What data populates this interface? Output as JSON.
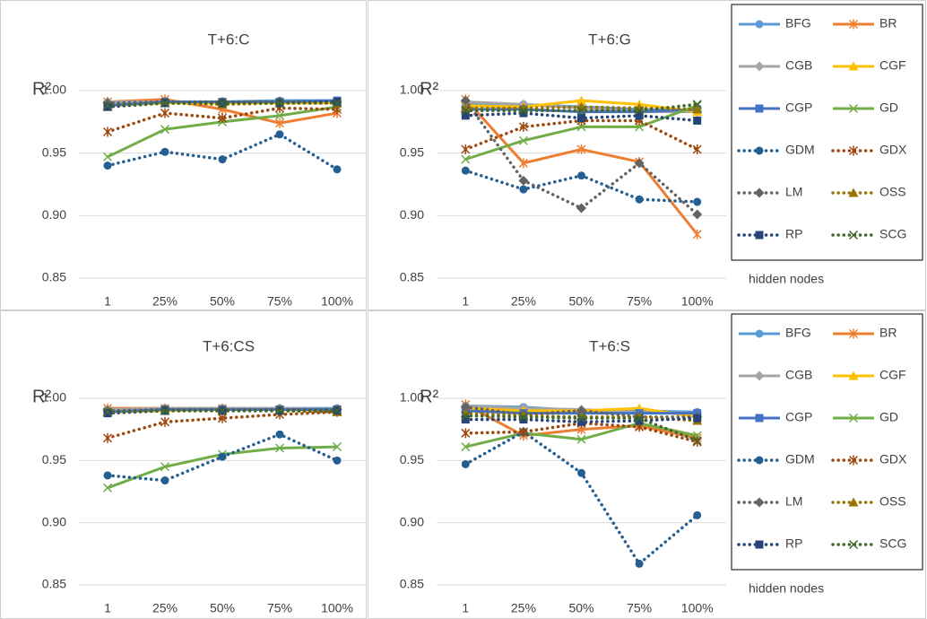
{
  "chart_data": [
    {
      "type": "line",
      "title": "T+6:C",
      "ylabel": "R²",
      "categories": [
        "1",
        "25%",
        "50%",
        "75%",
        "100%"
      ],
      "ylim": [
        0.85,
        1.0
      ],
      "yticks": [
        0.85,
        {
          "value": 0.9,
          "label": "0.90"
        },
        0.95,
        {
          "value": 1,
          "label": "1.00"
        }
      ],
      "grid": true,
      "series": [
        {
          "color": "#5b9bd5",
          "marker": "circle",
          "dash": false,
          "values": [
            0.99,
            0.991,
            0.991,
            0.992,
            0.992
          ]
        },
        {
          "color": "#ed7d31",
          "marker": "asterisk",
          "dash": false,
          "values": [
            0.991,
            0.993,
            0.985,
            0.974,
            0.982
          ]
        },
        {
          "color": "#a5a5a5",
          "marker": "diamond",
          "dash": false,
          "values": [
            0.991,
            0.991,
            0.99,
            0.991,
            0.991
          ]
        },
        {
          "color": "#ffc000",
          "marker": "triangle",
          "dash": false,
          "values": [
            0.988,
            0.99,
            0.99,
            0.99,
            0.99
          ]
        },
        {
          "color": "#4472c4",
          "marker": "square",
          "dash": false,
          "values": [
            0.988,
            0.991,
            0.991,
            0.991,
            0.992
          ]
        },
        {
          "color": "#70ad47",
          "marker": "x",
          "dash": false,
          "values": [
            0.947,
            0.969,
            0.975,
            0.98,
            0.987
          ]
        },
        {
          "color": "#255e91",
          "marker": "circle",
          "dash": true,
          "values": [
            0.94,
            0.951,
            0.945,
            0.965,
            0.937
          ]
        },
        {
          "color": "#9e480e",
          "marker": "asterisk",
          "dash": true,
          "values": [
            0.967,
            0.982,
            0.978,
            0.986,
            0.985
          ]
        },
        {
          "color": "#636363",
          "marker": "diamond",
          "dash": true,
          "values": [
            0.99,
            0.991,
            0.991,
            0.991,
            0.991
          ]
        },
        {
          "color": "#997300",
          "marker": "triangle",
          "dash": true,
          "values": [
            0.987,
            0.99,
            0.989,
            0.99,
            0.99
          ]
        },
        {
          "color": "#264478",
          "marker": "square",
          "dash": true,
          "values": [
            0.987,
            0.99,
            0.99,
            0.99,
            0.991
          ]
        },
        {
          "color": "#43682b",
          "marker": "x",
          "dash": true,
          "values": [
            0.988,
            0.99,
            0.99,
            0.99,
            0.99
          ]
        }
      ]
    },
    {
      "type": "line",
      "title": "T+6:G",
      "ylabel": "R²",
      "xlabel": "hidden nodes",
      "categories": [
        "1",
        "25%",
        "50%",
        "75%",
        "100%"
      ],
      "ylim": [
        0.85,
        1.0
      ],
      "yticks": [
        0.85,
        {
          "value": 0.9,
          "label": "0.90"
        },
        0.95,
        {
          "value": 1,
          "label": "1.00"
        }
      ],
      "grid": true,
      "series": [
        {
          "name": "BFG",
          "color": "#5b9bd5",
          "marker": "circle",
          "dash": false,
          "values": [
            0.99,
            0.989,
            0.987,
            0.985,
            0.984
          ]
        },
        {
          "name": "BR",
          "color": "#ed7d31",
          "marker": "asterisk",
          "dash": false,
          "values": [
            0.993,
            0.942,
            0.953,
            0.943,
            0.885
          ]
        },
        {
          "name": "CGB",
          "color": "#a5a5a5",
          "marker": "diamond",
          "dash": false,
          "values": [
            0.991,
            0.989,
            0.986,
            0.983,
            0.983
          ]
        },
        {
          "name": "CGF",
          "color": "#ffc000",
          "marker": "triangle",
          "dash": false,
          "values": [
            0.988,
            0.987,
            0.992,
            0.989,
            0.983
          ]
        },
        {
          "name": "CGP",
          "color": "#4472c4",
          "marker": "square",
          "dash": false,
          "values": [
            0.985,
            0.985,
            0.983,
            0.983,
            0.985
          ]
        },
        {
          "name": "GD",
          "color": "#70ad47",
          "marker": "x",
          "dash": false,
          "values": [
            0.945,
            0.96,
            0.971,
            0.971,
            0.988
          ]
        },
        {
          "name": "GDM",
          "color": "#255e91",
          "marker": "circle",
          "dash": true,
          "values": [
            0.936,
            0.921,
            0.932,
            0.913,
            0.911
          ]
        },
        {
          "name": "GDX",
          "color": "#9e480e",
          "marker": "asterisk",
          "dash": true,
          "values": [
            0.953,
            0.971,
            0.976,
            0.976,
            0.953
          ]
        },
        {
          "name": "LM",
          "color": "#636363",
          "marker": "diamond",
          "dash": true,
          "values": [
            0.992,
            0.928,
            0.906,
            0.942,
            0.901
          ]
        },
        {
          "name": "OSS",
          "color": "#997300",
          "marker": "triangle",
          "dash": true,
          "values": [
            0.986,
            0.986,
            0.987,
            0.986,
            0.985
          ]
        },
        {
          "name": "RP",
          "color": "#264478",
          "marker": "square",
          "dash": true,
          "values": [
            0.98,
            0.982,
            0.978,
            0.98,
            0.976
          ]
        },
        {
          "name": "SCG",
          "color": "#43682b",
          "marker": "x",
          "dash": true,
          "values": [
            0.984,
            0.984,
            0.984,
            0.984,
            0.989
          ]
        }
      ]
    },
    {
      "type": "line",
      "title": "T+6:CS",
      "ylabel": "R²",
      "categories": [
        "1",
        "25%",
        "50%",
        "75%",
        "100%"
      ],
      "ylim": [
        0.85,
        1.0
      ],
      "yticks": [
        0.85,
        {
          "value": 0.9,
          "label": "0.90"
        },
        0.95,
        {
          "value": 1,
          "label": "1.00"
        }
      ],
      "grid": true,
      "series": [
        {
          "color": "#5b9bd5",
          "marker": "circle",
          "dash": false,
          "values": [
            0.991,
            0.992,
            0.992,
            0.992,
            0.992
          ]
        },
        {
          "color": "#ed7d31",
          "marker": "asterisk",
          "dash": false,
          "values": [
            0.992,
            0.992,
            0.992,
            0.991,
            0.991
          ]
        },
        {
          "color": "#a5a5a5",
          "marker": "diamond",
          "dash": false,
          "values": [
            0.991,
            0.992,
            0.992,
            0.992,
            0.991
          ]
        },
        {
          "color": "#ffc000",
          "marker": "triangle",
          "dash": false,
          "values": [
            0.989,
            0.99,
            0.991,
            0.991,
            0.99
          ]
        },
        {
          "color": "#4472c4",
          "marker": "square",
          "dash": false,
          "values": [
            0.989,
            0.991,
            0.991,
            0.991,
            0.991
          ]
        },
        {
          "color": "#70ad47",
          "marker": "x",
          "dash": false,
          "values": [
            0.928,
            0.945,
            0.955,
            0.96,
            0.961
          ]
        },
        {
          "color": "#255e91",
          "marker": "circle",
          "dash": true,
          "values": [
            0.938,
            0.934,
            0.953,
            0.971,
            0.95
          ]
        },
        {
          "color": "#9e480e",
          "marker": "asterisk",
          "dash": true,
          "values": [
            0.968,
            0.981,
            0.984,
            0.987,
            0.989
          ]
        },
        {
          "color": "#636363",
          "marker": "diamond",
          "dash": true,
          "values": [
            0.99,
            0.991,
            0.991,
            0.991,
            0.991
          ]
        },
        {
          "color": "#997300",
          "marker": "triangle",
          "dash": true,
          "values": [
            0.989,
            0.99,
            0.99,
            0.99,
            0.989
          ]
        },
        {
          "color": "#264478",
          "marker": "square",
          "dash": true,
          "values": [
            0.988,
            0.99,
            0.99,
            0.99,
            0.99
          ]
        },
        {
          "color": "#43682b",
          "marker": "x",
          "dash": true,
          "values": [
            0.989,
            0.99,
            0.99,
            0.99,
            0.99
          ]
        }
      ]
    },
    {
      "type": "line",
      "title": "T+6:S",
      "ylabel": "R²",
      "xlabel": "hidden nodes",
      "categories": [
        "1",
        "25%",
        "50%",
        "75%",
        "100%"
      ],
      "ylim": [
        0.85,
        1.0
      ],
      "yticks": [
        0.85,
        {
          "value": 0.9,
          "label": "0.90"
        },
        0.95,
        {
          "value": 1,
          "label": "1.00"
        }
      ],
      "grid": true,
      "series": [
        {
          "name": "BFG",
          "color": "#5b9bd5",
          "marker": "circle",
          "dash": false,
          "values": [
            0.994,
            0.993,
            0.99,
            0.99,
            0.989
          ]
        },
        {
          "name": "BR",
          "color": "#ed7d31",
          "marker": "asterisk",
          "dash": false,
          "values": [
            0.995,
            0.97,
            0.975,
            0.978,
            0.968
          ]
        },
        {
          "name": "CGB",
          "color": "#a5a5a5",
          "marker": "diamond",
          "dash": false,
          "values": [
            0.994,
            0.992,
            0.991,
            0.989,
            0.988
          ]
        },
        {
          "name": "CGF",
          "color": "#ffc000",
          "marker": "triangle",
          "dash": false,
          "values": [
            0.992,
            0.99,
            0.99,
            0.992,
            0.985
          ]
        },
        {
          "name": "CGP",
          "color": "#4472c4",
          "marker": "square",
          "dash": false,
          "values": [
            0.99,
            0.988,
            0.988,
            0.988,
            0.988
          ]
        },
        {
          "name": "GD",
          "color": "#70ad47",
          "marker": "x",
          "dash": false,
          "values": [
            0.961,
            0.972,
            0.967,
            0.98,
            0.97
          ]
        },
        {
          "name": "GDM",
          "color": "#255e91",
          "marker": "circle",
          "dash": true,
          "values": [
            0.947,
            0.973,
            0.94,
            0.867,
            0.906
          ]
        },
        {
          "name": "GDX",
          "color": "#9e480e",
          "marker": "asterisk",
          "dash": true,
          "values": [
            0.972,
            0.973,
            0.98,
            0.977,
            0.965
          ]
        },
        {
          "name": "LM",
          "color": "#636363",
          "marker": "diamond",
          "dash": true,
          "values": [
            0.993,
            0.987,
            0.99,
            0.985,
            0.985
          ]
        },
        {
          "name": "OSS",
          "color": "#997300",
          "marker": "triangle",
          "dash": true,
          "values": [
            0.988,
            0.986,
            0.985,
            0.985,
            0.982
          ]
        },
        {
          "name": "RP",
          "color": "#264478",
          "marker": "square",
          "dash": true,
          "values": [
            0.983,
            0.983,
            0.981,
            0.982,
            0.984
          ]
        },
        {
          "name": "SCG",
          "color": "#43682b",
          "marker": "x",
          "dash": true,
          "values": [
            0.986,
            0.985,
            0.984,
            0.984,
            0.966
          ]
        }
      ]
    }
  ]
}
